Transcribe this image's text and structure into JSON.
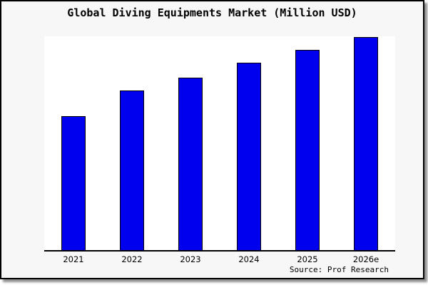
{
  "title": "Global Diving Equipments Market (Million USD)",
  "source_note": "Source: Prof Research",
  "colors": {
    "figure_background": "#f7f7f7",
    "plot_background": "#ffffff",
    "frame_border": "#000000",
    "bar_fill": "#0000ee",
    "bar_border": "#000000",
    "shadow": "#8f8f8f"
  },
  "chart_data": {
    "type": "bar",
    "title": "Global Diving Equipments Market (Million USD)",
    "categories": [
      "2021",
      "2022",
      "2023",
      "2024",
      "2025",
      "2026e"
    ],
    "values": [
      63,
      75,
      81,
      88,
      94,
      100
    ],
    "values_note": "No y-axis scale shown; values are bar heights relative to 2026e = 100",
    "xlabel": "",
    "ylabel": "",
    "ylim": [
      0,
      100
    ],
    "grid": false,
    "legend": false,
    "bar_color": "#0000ee",
    "annotations": [
      "Source: Prof Research"
    ]
  }
}
